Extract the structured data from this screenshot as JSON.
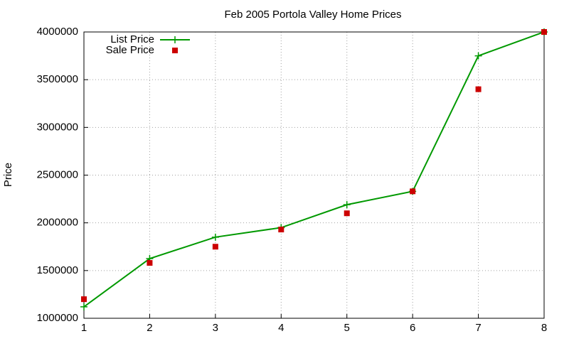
{
  "chart_data": {
    "type": "line",
    "title": "Feb 2005 Portola Valley Home Prices",
    "y_label": "Price",
    "x": [
      1,
      2,
      3,
      4,
      5,
      6,
      7,
      8
    ],
    "series": [
      {
        "name": "List Price",
        "color": "#009900",
        "mode": "linespoints",
        "values": [
          1120000,
          1625000,
          1850000,
          1950000,
          2190000,
          2330000,
          3750000,
          4000000
        ]
      },
      {
        "name": "Sale Price",
        "color": "#cc0000",
        "mode": "points",
        "values": [
          1200000,
          1580000,
          1750000,
          1930000,
          2100000,
          2330000,
          3400000,
          4000000
        ]
      }
    ],
    "xlim": [
      1,
      8
    ],
    "xticks": [
      1,
      2,
      3,
      4,
      5,
      6,
      7,
      8
    ],
    "ylim": [
      1000000,
      4000000
    ],
    "yticks": [
      1000000,
      1500000,
      2000000,
      2500000,
      3000000,
      3500000,
      4000000
    ],
    "grid": true,
    "legend": "top-left"
  }
}
